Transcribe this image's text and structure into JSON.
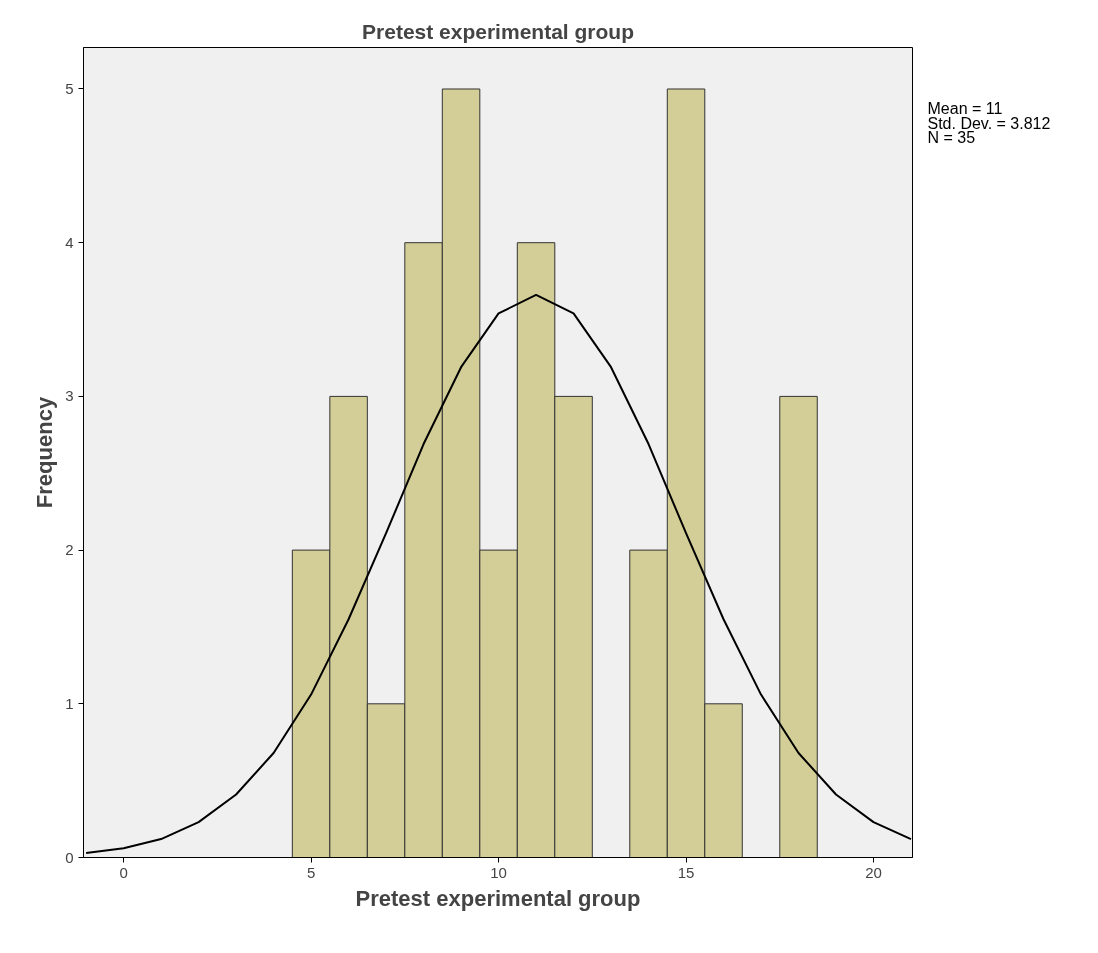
{
  "chart_data": {
    "type": "histogram",
    "title": "Pretest experimental group",
    "xlabel": "Pretest experimental group",
    "ylabel": "Frequency",
    "bins": [
      4.5,
      5.5,
      6.5,
      7.5,
      8.5,
      9.5,
      10.5,
      11.5,
      12.5,
      13.5,
      14.5,
      15.5,
      16.5,
      17.5,
      18.5
    ],
    "values": [
      2,
      3,
      1,
      4,
      5,
      2,
      4,
      3,
      0,
      2,
      5,
      1,
      0,
      3
    ],
    "color": "#d3ce97",
    "series": [
      {
        "type": "line",
        "color": "#000000",
        "x": [
          -1,
          0,
          1,
          2,
          3,
          4,
          5,
          6,
          7,
          8,
          9,
          10,
          11,
          12,
          13,
          14,
          15,
          16,
          17,
          18,
          19,
          20,
          21
        ],
        "values": [
          0.03,
          0.06,
          0.12,
          0.23,
          0.41,
          0.68,
          1.06,
          1.55,
          2.11,
          2.69,
          3.19,
          3.54,
          3.66,
          3.54,
          3.19,
          2.69,
          2.11,
          1.55,
          1.06,
          0.68,
          0.41,
          0.23,
          0.12
        ]
      }
    ],
    "xlim": [
      -1.07,
      21.04
    ],
    "xticks": [
      0,
      5,
      10,
      15,
      20
    ],
    "ylim": [
      0,
      5.27
    ],
    "yticks": [
      0,
      1,
      2,
      3,
      4,
      5
    ],
    "annotations": [
      "Mean = 11",
      "Std. Dev. = 3.812",
      "N = 35"
    ],
    "grid": false
  }
}
